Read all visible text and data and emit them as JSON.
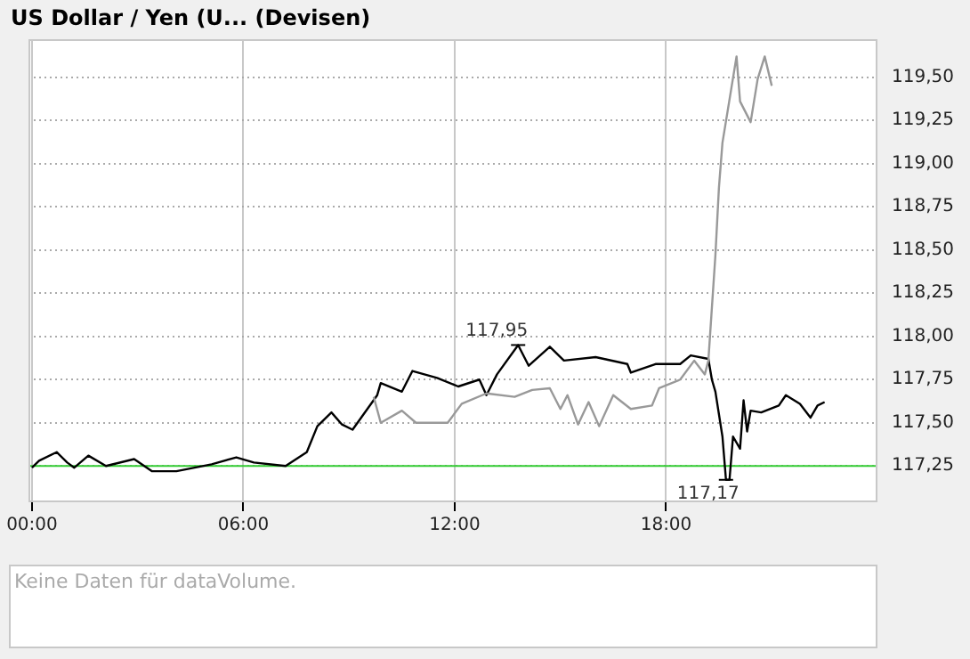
{
  "chart_data": {
    "type": "line",
    "legend": "top left",
    "xlim": [
      -0.1,
      24
    ],
    "xticks": [
      {
        "value": 0,
        "label": "00:00"
      },
      {
        "value": 6,
        "label": "06:00"
      },
      {
        "value": 12,
        "label": "12:00"
      },
      {
        "value": 18,
        "label": "18:00"
      }
    ],
    "ylim": [
      117.04,
      119.72
    ],
    "yticks": [
      {
        "value": 117.25,
        "label": "117,25"
      },
      {
        "value": 117.5,
        "label": "117,50"
      },
      {
        "value": 117.75,
        "label": "117,75"
      },
      {
        "value": 118,
        "label": "118,00"
      },
      {
        "value": 118.25,
        "label": "118,25"
      },
      {
        "value": 118.5,
        "label": "118,50"
      },
      {
        "value": 118.75,
        "label": "118,75"
      },
      {
        "value": 119,
        "label": "119,00"
      },
      {
        "value": 119.25,
        "label": "119,25"
      },
      {
        "value": 119.5,
        "label": "119,50"
      }
    ],
    "grid": true,
    "marker": "none",
    "line_style": "solid",
    "series": [
      {
        "name": "US Dollar / Yen (U... (Devisen)",
        "color": "#000000",
        "x": [
          0,
          0.2,
          0.7,
          1.0,
          1.2,
          1.6,
          2.1,
          2.9,
          3.4,
          4.1,
          5.1,
          5.8,
          6.3,
          7.2,
          7.8,
          8.1,
          8.5,
          8.8,
          9.1,
          9.8,
          9.9,
          10.5,
          10.8,
          11.5,
          12.1,
          12.7,
          12.9,
          13.2,
          13.8,
          14.1,
          14.7,
          15.1,
          16.0,
          16.9,
          17.0,
          17.7,
          18.4,
          18.7,
          19.2,
          19.3,
          19.4,
          19.6,
          19.7,
          19.8,
          19.9,
          20.1,
          20.2,
          20.3,
          20.4,
          20.7,
          21.2,
          21.4,
          21.8,
          22.1,
          22.3,
          22.5
        ],
        "values": [
          117.24,
          117.28,
          117.33,
          117.27,
          117.24,
          117.31,
          117.25,
          117.29,
          117.22,
          117.22,
          117.26,
          117.3,
          117.27,
          117.25,
          117.33,
          117.48,
          117.56,
          117.49,
          117.46,
          117.66,
          117.73,
          117.68,
          117.8,
          117.76,
          117.71,
          117.75,
          117.66,
          117.78,
          117.95,
          117.83,
          117.94,
          117.86,
          117.88,
          117.84,
          117.79,
          117.84,
          117.84,
          117.89,
          117.87,
          117.75,
          117.68,
          117.42,
          117.17,
          117.17,
          117.42,
          117.35,
          117.63,
          117.45,
          117.57,
          117.56,
          117.6,
          117.66,
          117.61,
          117.53,
          117.6,
          117.62
        ]
      },
      {
        "color": "#999999",
        "x": [
          9.7,
          9.9,
          10.5,
          10.9,
          11.8,
          12.2,
          12.9,
          13.7,
          14.2,
          14.7,
          15.0,
          15.2,
          15.5,
          15.8,
          16.1,
          16.5,
          17.0,
          17.6,
          17.8,
          18.4,
          18.8,
          19.1,
          19.2,
          19.4,
          19.5,
          19.6,
          20.0,
          20.1,
          20.4,
          20.6,
          20.8,
          21.0
        ],
        "values": [
          117.65,
          117.5,
          117.57,
          117.5,
          117.5,
          117.61,
          117.67,
          117.65,
          117.69,
          117.7,
          117.58,
          117.66,
          117.49,
          117.62,
          117.48,
          117.66,
          117.58,
          117.6,
          117.7,
          117.75,
          117.86,
          117.78,
          117.86,
          118.47,
          118.86,
          119.12,
          119.62,
          119.36,
          119.24,
          119.49,
          119.62,
          119.45
        ]
      }
    ],
    "ref_lines": [
      {
        "axis": "y",
        "value": 117.25,
        "color": "#33cc33"
      }
    ],
    "annotations": [
      {
        "text": "117,95",
        "x": 13.8,
        "y": 117.95
      },
      {
        "text": "117,17",
        "x": 19.7,
        "y": 117.17
      },
      "Keine Daten für dataVolume."
    ]
  }
}
